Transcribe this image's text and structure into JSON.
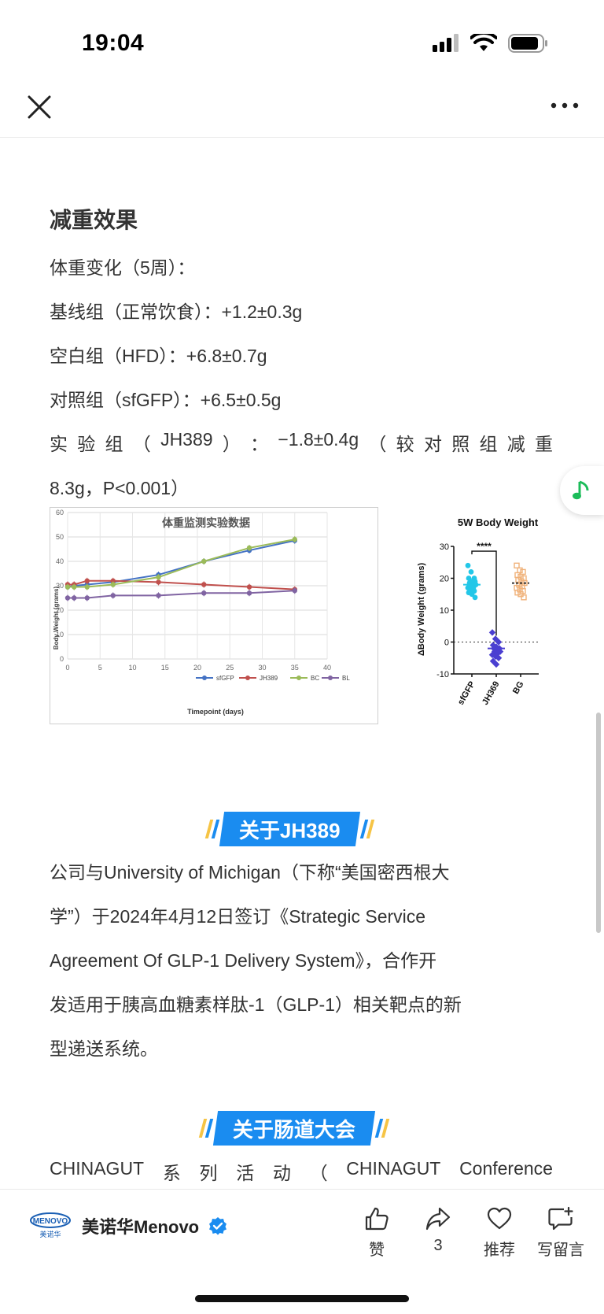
{
  "status": {
    "time": "19:04"
  },
  "article": {
    "heading": "减重效果",
    "lines": [
      "体重变化（5周）：",
      "基线组（正常饮食）：+1.2±0.3g",
      "空白组（HFD）：+6.8±0.7g",
      "对照组（sfGFP）：+6.5±0.5g"
    ],
    "exp_line_parts": [
      "实",
      "验",
      "组",
      "（",
      "JH389",
      "）",
      "：",
      "−1.8±0.4g",
      "（",
      "较",
      "对",
      "照",
      "组",
      "减",
      "重"
    ],
    "exp_line_tail": "8.3g，P<0.001）",
    "about_jh389_badge": "关于JH389",
    "about_jh389_lines": [
      "公司与University of Michigan（下称“美国密西根大",
      "学”）于2024年4月12日签订《Strategic Service",
      "Agreement Of GLP-1 Delivery System》，合作开",
      "发适用于胰高血糖素样肽-1（GLP-1）相关靶点的新",
      "型递送系统。"
    ],
    "about_gut_badge": "关于肠道大会",
    "gut_line_parts": [
      "CHINAGUT",
      "系",
      "列",
      "活",
      "动",
      "（",
      "CHINAGUT",
      "Conference"
    ]
  },
  "chart_data": [
    {
      "type": "line",
      "title": "体重监测实验数据",
      "xlabel": "Timepoint (days)",
      "ylabel": "Body Weight (grams)",
      "xlim": [
        0,
        40
      ],
      "ylim": [
        0,
        60
      ],
      "xticks": [
        "0",
        "5",
        "10",
        "15",
        "20",
        "25",
        "30",
        "35",
        "40"
      ],
      "yticks": [
        "0",
        "10",
        "20",
        "30",
        "40",
        "50",
        "60"
      ],
      "legend_position": "bottom",
      "series": [
        {
          "name": "sfGFP",
          "color": "#4472c4",
          "x": [
            0,
            1,
            3,
            7,
            14,
            21,
            28,
            35
          ],
          "y": [
            29.5,
            30,
            30.5,
            31.5,
            34.5,
            40,
            44.5,
            48.5
          ]
        },
        {
          "name": "JH389",
          "color": "#c0504d",
          "x": [
            0,
            1,
            3,
            7,
            14,
            21,
            28,
            35
          ],
          "y": [
            30.5,
            30.5,
            32,
            32,
            31.5,
            30.5,
            29.5,
            28.5
          ]
        },
        {
          "name": "BC",
          "color": "#9bbb59",
          "x": [
            0,
            1,
            3,
            7,
            14,
            21,
            28,
            35
          ],
          "y": [
            29.5,
            29.5,
            29.5,
            30.5,
            33.5,
            40,
            45.5,
            49
          ]
        },
        {
          "name": "BL",
          "color": "#8064a2",
          "x": [
            0,
            1,
            3,
            7,
            14,
            21,
            28,
            35
          ],
          "y": [
            25,
            25,
            25,
            26,
            26,
            27,
            27,
            28
          ]
        }
      ]
    },
    {
      "type": "scatter",
      "title": "5W Body Weight",
      "ylabel": "ΔBody Weight (grams)",
      "ylim": [
        -10,
        30
      ],
      "yticks": [
        "-10",
        "0",
        "10",
        "20",
        "30"
      ],
      "categories": [
        "sfGFP",
        "JH369",
        "BG"
      ],
      "colors": [
        "#22c7e8",
        "#4a3fd1",
        "#f0b27a"
      ],
      "means": [
        18,
        -2,
        18.5
      ],
      "significance": "****",
      "values": [
        [
          24,
          22,
          20,
          20,
          19,
          19,
          18.5,
          18,
          18,
          17.5,
          17,
          17,
          16.5,
          16,
          15.5,
          15,
          14
        ],
        [
          3,
          1,
          0,
          -1,
          -1.5,
          -2,
          -2,
          -2.5,
          -3,
          -3,
          -3.5,
          -4,
          -4.5,
          -5,
          -6,
          -7
        ],
        [
          24,
          22.5,
          22,
          21,
          20.5,
          20,
          19.5,
          19,
          18.5,
          18,
          17.5,
          17,
          16.5,
          16,
          15.5,
          15,
          14
        ]
      ]
    }
  ],
  "author": {
    "name": "美诺华Menovo",
    "logo_text": "MENOVO",
    "logo_sub": "美诺华"
  },
  "actions": [
    {
      "icon": "thumbs-up-icon",
      "label": "赞"
    },
    {
      "icon": "share-icon",
      "label": "3"
    },
    {
      "icon": "heart-icon",
      "label": "推荐"
    },
    {
      "icon": "comment-icon",
      "label": "写留言"
    }
  ],
  "colors": {
    "accent": "#1a8cf0",
    "music": "#1cbc5a",
    "verified": "#1a8cf0"
  }
}
